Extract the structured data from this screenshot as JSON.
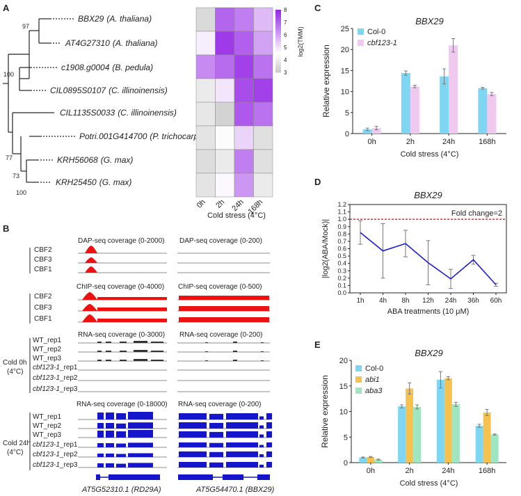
{
  "panels": {
    "A": "A",
    "B": "B",
    "C": "C",
    "D": "D",
    "E": "E"
  },
  "colors": {
    "col0": "#7fd6f2",
    "cbf": "#f0c8f0",
    "abi1": "#f5c24f",
    "aba3": "#9fe6c0",
    "line": "#1c1cd6",
    "threshold": "#e8141e",
    "dap": "#ee1111",
    "rna": "#1515cc",
    "rnaCold0": "#333333",
    "err": "#777777"
  },
  "panelA": {
    "genes": [
      {
        "id": "BBX29",
        "species": "(A. thaliana)"
      },
      {
        "id": "AT4G27310",
        "species": "(A. thaliana)"
      },
      {
        "id": "c1908.g0004",
        "species": "(B. pedula)"
      },
      {
        "id": "CIL0895S0107",
        "species": "(C. illinoinensis)"
      },
      {
        "id": "CIL1135S0033",
        "species": "(C. illinoinensis)"
      },
      {
        "id": "Potri.001G414700",
        "species": "(P. trichocarpa)"
      },
      {
        "id": "KRH56068",
        "species": "(G. max)"
      },
      {
        "id": "KRH25450",
        "species": "(G. max)"
      }
    ],
    "bootstrap": [
      "97",
      "100",
      "77",
      "73",
      "100"
    ],
    "heatmap": {
      "columns": [
        "0h",
        "2h",
        "24h",
        "168h"
      ],
      "values": [
        [
          3.4,
          7.0,
          6.6,
          5.6
        ],
        [
          4.8,
          7.7,
          7.1,
          6.0
        ],
        [
          6.4,
          6.9,
          7.6,
          6.8
        ],
        [
          3.9,
          4.9,
          7.4,
          7.6
        ],
        [
          3.8,
          3.2,
          7.2,
          6.8
        ],
        [
          3.7,
          4.4,
          5.2,
          3.6
        ],
        [
          3.5,
          3.9,
          6.6,
          3.6
        ],
        [
          3.7,
          4.6,
          6.2,
          3.9
        ]
      ],
      "scale_min": 3,
      "scale_max": 8,
      "scale_ticks": [
        "3",
        "4",
        "5",
        "6",
        "7",
        "8"
      ],
      "scale_label": "log2(TMM)",
      "xlabel": "Cold stress (4°C)"
    }
  },
  "panelB": {
    "dap_titles": [
      "DAP-seq coverage (0-2000)",
      "DAP-seq coverage (0-200)"
    ],
    "chip_titles": [
      "ChIP-seq coverage (0-4000)",
      "ChIP-seq coverage (0-500)"
    ],
    "rna0_titles": [
      "RNA-seq coverage (0-3000)",
      "RNA-seq coverage (0-200)"
    ],
    "rna24_titles": [
      "RNA-seq coverage (0-18000)",
      "RNA-seq coverage (0-200)"
    ],
    "cbf_tracks": [
      "CBF2",
      "CBF3",
      "CBF1"
    ],
    "rna_tracks": [
      {
        "prefix": "WT",
        "suffix": "_rep1"
      },
      {
        "prefix": "WT",
        "suffix": "_rep2"
      },
      {
        "prefix": "WT",
        "suffix": "_rep3"
      },
      {
        "prefix": "cbf123-1",
        "suffix": "_rep1"
      },
      {
        "prefix": "cbf123-1",
        "suffix": "_rep2"
      },
      {
        "prefix": "cbf123-1",
        "suffix": "_rep3"
      }
    ],
    "cold0": [
      "Cold 0h",
      "(4°C)"
    ],
    "cold24": [
      "Cold 24h",
      "(4°C)"
    ],
    "genes": [
      {
        "id": "AT5G52310.1",
        "alias": "RD29A"
      },
      {
        "id": "AT5G54470.1",
        "alias": "BBX29"
      }
    ]
  },
  "chart_data": [
    {
      "panel": "C",
      "type": "bar",
      "title": "BBX29",
      "categories": [
        "0h",
        "2h",
        "24h",
        "168h"
      ],
      "series": [
        {
          "name": "Col-0",
          "values": [
            1.0,
            14.4,
            13.6,
            10.8
          ],
          "errors": [
            0.3,
            0.5,
            1.8,
            0.2
          ]
        },
        {
          "name": "cbf123-1",
          "values": [
            1.3,
            11.2,
            21.0,
            9.4
          ],
          "errors": [
            0.4,
            0.3,
            1.6,
            0.4
          ]
        }
      ],
      "xlabel": "Cold stress (4°C)",
      "ylabel": "Relative expression",
      "ylim": [
        0,
        25
      ],
      "yticks": [
        "0",
        "5",
        "10",
        "15",
        "20",
        "25"
      ]
    },
    {
      "panel": "D",
      "type": "line",
      "title": "BBX29",
      "x": [
        "1h",
        "4h",
        "8h",
        "12h",
        "24h",
        "36h",
        "60h"
      ],
      "values": [
        0.82,
        0.57,
        0.67,
        0.41,
        0.19,
        0.45,
        0.11
      ],
      "errors": [
        0.16,
        0.37,
        0.18,
        0.3,
        0.13,
        0.06,
        0.02
      ],
      "threshold": 1.0,
      "threshold_label": "Fold change=2",
      "xlabel": "ABA treatments (10 μM)",
      "ylabel": "|log2(ABA/Mock)|",
      "ylim": [
        0,
        1.2
      ],
      "yticks": [
        "0.0",
        "0.1",
        "0.2",
        "0.3",
        "0.4",
        "0.5",
        "0.6",
        "0.7",
        "0.8",
        "0.9",
        "1.0",
        "1.1",
        "1.2"
      ]
    },
    {
      "panel": "E",
      "type": "bar",
      "title": "BBX29",
      "categories": [
        "0h",
        "2h",
        "24h",
        "168h"
      ],
      "series": [
        {
          "name": "Col-0",
          "values": [
            1.0,
            11.0,
            16.2,
            7.2
          ],
          "errors": [
            0.1,
            0.3,
            1.6,
            0.3
          ]
        },
        {
          "name": "abi1",
          "values": [
            1.1,
            14.5,
            16.5,
            9.8
          ],
          "errors": [
            0.1,
            1.1,
            0.3,
            0.6
          ]
        },
        {
          "name": "aba3",
          "values": [
            0.6,
            10.9,
            11.4,
            5.5
          ],
          "errors": [
            0.1,
            0.4,
            0.4,
            0.1
          ]
        }
      ],
      "xlabel": "Cold stress (4°C)",
      "ylabel": "Relative expression",
      "ylim": [
        0,
        20
      ],
      "yticks": [
        "0",
        "5",
        "10",
        "15",
        "20"
      ]
    }
  ]
}
